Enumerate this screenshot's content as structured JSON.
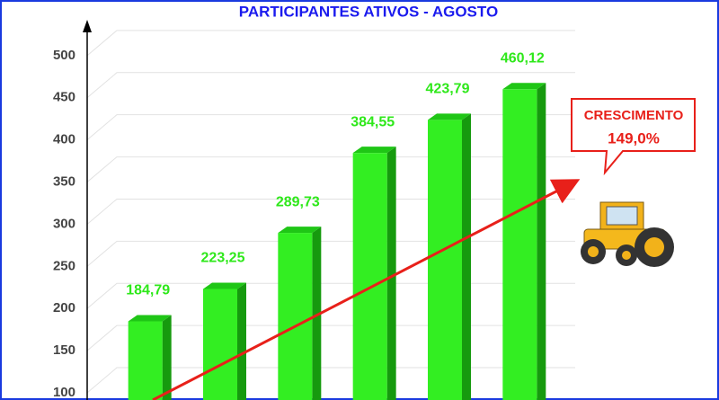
{
  "chart_data": {
    "type": "bar3d",
    "title": "PARTICIPANTES ATIVOS - AGOSTO",
    "categories": [
      null,
      null,
      null,
      null,
      null,
      null
    ],
    "values": [
      184.79,
      223.25,
      289.73,
      384.55,
      423.79,
      460.12
    ],
    "value_labels": [
      "184,79",
      "223,25",
      "289,73",
      "384,55",
      "423,79",
      "460,12"
    ],
    "color": "#33ee22",
    "ylim": [
      91.5,
      534
    ],
    "yticks": [
      100,
      150,
      200,
      250,
      300,
      350,
      400,
      450,
      500
    ],
    "grid": true,
    "annotation": {
      "title": "CRESCIMENTO",
      "value": "149,0%"
    }
  }
}
